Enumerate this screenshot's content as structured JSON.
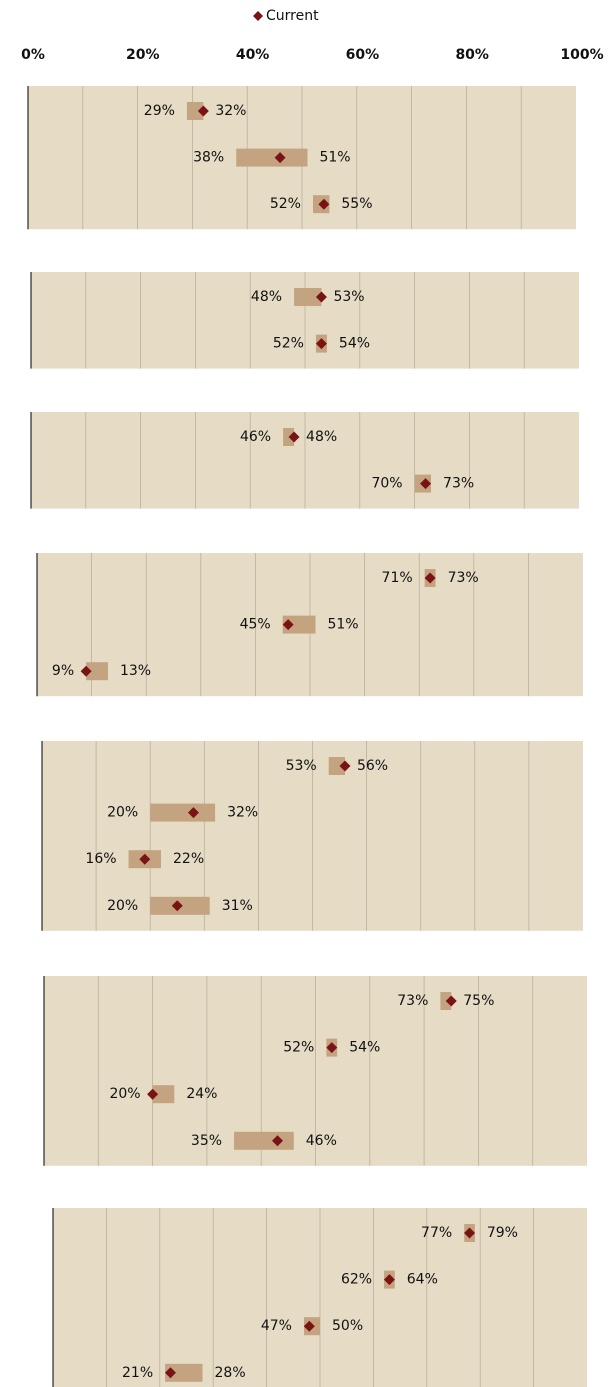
{
  "chart_data": {
    "type": "range",
    "legend": {
      "name": "Current",
      "color": "#7a1414"
    },
    "bar_color": "#c4a381",
    "background": "#e6dcc6",
    "grid": true,
    "xlim": [
      0,
      100
    ],
    "xticks": [
      {
        "value": 0,
        "label": "0%"
      },
      {
        "value": 20,
        "label": "20%"
      },
      {
        "value": 40,
        "label": "40%"
      },
      {
        "value": 60,
        "label": "60%"
      },
      {
        "value": 80,
        "label": "80%"
      },
      {
        "value": 100,
        "label": "100%"
      }
    ],
    "panels": [
      {
        "low": [
          29,
          38,
          52
        ],
        "low_labels": [
          "29%",
          "38%",
          "52%"
        ],
        "high": [
          32,
          51,
          55
        ],
        "high_labels": [
          "32%",
          "51%",
          "55%"
        ],
        "current": [
          32,
          46,
          54
        ]
      },
      {
        "low": [
          48,
          52
        ],
        "low_labels": [
          "48%",
          "52%"
        ],
        "high": [
          53,
          54
        ],
        "high_labels": [
          "53%",
          "54%"
        ],
        "current": [
          53,
          53
        ]
      },
      {
        "low": [
          46,
          70
        ],
        "low_labels": [
          "46%",
          "70%"
        ],
        "high": [
          48,
          73
        ],
        "high_labels": [
          "48%",
          "73%"
        ],
        "current": [
          48,
          72
        ]
      },
      {
        "low": [
          71,
          45,
          9
        ],
        "low_labels": [
          "71%",
          "45%",
          "9%"
        ],
        "high": [
          73,
          51,
          13
        ],
        "high_labels": [
          "73%",
          "51%",
          "13%"
        ],
        "current": [
          72,
          46,
          9
        ]
      },
      {
        "low": [
          53,
          20,
          16,
          20
        ],
        "low_labels": [
          "53%",
          "20%",
          "16%",
          "20%"
        ],
        "high": [
          56,
          32,
          22,
          31
        ],
        "high_labels": [
          "56%",
          "32%",
          "22%",
          "31%"
        ],
        "current": [
          56,
          28,
          19,
          25
        ]
      },
      {
        "low": [
          73,
          52,
          20,
          35
        ],
        "low_labels": [
          "73%",
          "52%",
          "20%",
          "35%"
        ],
        "high": [
          75,
          54,
          24,
          46
        ],
        "high_labels": [
          "75%",
          "54%",
          "24%",
          "46%"
        ],
        "current": [
          75,
          53,
          20,
          43
        ]
      },
      {
        "low": [
          77,
          62,
          47,
          21
        ],
        "low_labels": [
          "77%",
          "62%",
          "47%",
          "21%"
        ],
        "high": [
          79,
          64,
          50,
          28
        ],
        "high_labels": [
          "79%",
          "64%",
          "50%",
          "28%"
        ],
        "current": [
          78,
          63,
          48,
          22
        ]
      }
    ]
  }
}
